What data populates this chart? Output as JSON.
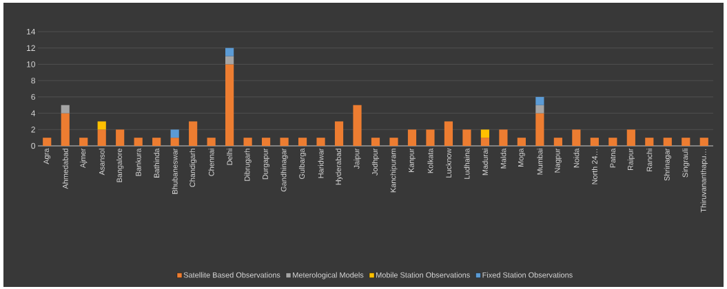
{
  "chart_data": {
    "type": "bar",
    "stacked": true,
    "categories": [
      "Agra",
      "Ahmedabad",
      "Ajmer",
      "Asansol",
      "Bangalore",
      "Bankura",
      "Bathinda",
      "Bhubaneswar",
      "Chandigarh",
      "Chennai",
      "Delhi",
      "Dibrugarh",
      "Durgapur",
      "Gandhinagar",
      "Gulbarga",
      "Haridwar",
      "Hyderabad",
      "Jaipur",
      "Jodhpur",
      "Kanchipuram",
      "Kanpur",
      "Kolkata",
      "Lucknow",
      "Ludhaina",
      "Madurai",
      "Malda",
      "Moga",
      "Mumbai",
      "Nagpur",
      "Noida",
      "North 24…",
      "Patna",
      "Raipur",
      "Ranchi",
      "Shrinagar",
      "Singrauli",
      "Thiruvananthapu…"
    ],
    "series": [
      {
        "name": "Satellite Based Observations",
        "color": "#ed7d31",
        "values": [
          1,
          4,
          1,
          2,
          2,
          1,
          1,
          1,
          3,
          1,
          10,
          1,
          1,
          1,
          1,
          1,
          3,
          5,
          1,
          1,
          2,
          2,
          3,
          2,
          1,
          2,
          1,
          4,
          1,
          2,
          1,
          1,
          2,
          1,
          1,
          1,
          1
        ]
      },
      {
        "name": "Meterological Models",
        "color": "#a5a5a5",
        "values": [
          null,
          1,
          null,
          null,
          null,
          null,
          null,
          null,
          null,
          null,
          1,
          null,
          null,
          null,
          null,
          null,
          null,
          null,
          null,
          null,
          null,
          null,
          null,
          null,
          null,
          null,
          null,
          1,
          null,
          null,
          null,
          null,
          null,
          null,
          null,
          null,
          null
        ]
      },
      {
        "name": "Mobile Station Observations",
        "color": "#ffc000",
        "values": [
          null,
          null,
          null,
          1,
          null,
          null,
          null,
          null,
          null,
          null,
          null,
          null,
          null,
          null,
          null,
          null,
          null,
          null,
          null,
          null,
          null,
          null,
          null,
          null,
          1,
          null,
          null,
          null,
          null,
          null,
          null,
          null,
          null,
          null,
          null,
          null,
          null
        ]
      },
      {
        "name": "Fixed Station Observations",
        "color": "#5b9bd5",
        "values": [
          null,
          null,
          null,
          null,
          null,
          null,
          null,
          1,
          null,
          null,
          1,
          null,
          null,
          null,
          null,
          null,
          null,
          null,
          null,
          null,
          null,
          null,
          null,
          null,
          null,
          null,
          null,
          1,
          null,
          null,
          null,
          null,
          null,
          null,
          null,
          null,
          null
        ]
      }
    ],
    "ylim": [
      0,
      14
    ],
    "yticks": [
      0,
      2,
      4,
      6,
      8,
      10,
      12,
      14
    ],
    "grid": "y",
    "legend": "bottom"
  }
}
